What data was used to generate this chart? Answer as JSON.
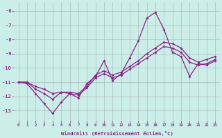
{
  "bg_color": "#cceee8",
  "grid_color": "#aabbbb",
  "line_color": "#882288",
  "x": [
    0,
    1,
    2,
    3,
    4,
    5,
    6,
    7,
    8,
    9,
    10,
    11,
    12,
    13,
    14,
    15,
    16,
    17,
    18,
    19,
    20,
    21,
    22,
    23
  ],
  "s1": [
    -11.0,
    -11.1,
    -11.8,
    -12.5,
    -13.2,
    -12.4,
    -11.8,
    -12.1,
    -11.1,
    -10.6,
    -9.5,
    -10.9,
    -10.4,
    -9.3,
    -8.1,
    -6.5,
    -6.1,
    -7.3,
    -8.9,
    -9.2,
    -10.6,
    -9.7,
    -9.8,
    -9.5
  ],
  "s2": [
    -11.0,
    -11.0,
    -11.5,
    -11.8,
    -12.2,
    -11.7,
    -11.8,
    -11.9,
    -11.4,
    -10.7,
    -10.4,
    -10.7,
    -10.5,
    -10.1,
    -9.7,
    -9.3,
    -8.9,
    -8.5,
    -8.6,
    -8.9,
    -9.6,
    -9.8,
    -9.7,
    -9.4
  ],
  "s3": [
    -11.0,
    -11.0,
    -11.3,
    -11.5,
    -11.8,
    -11.7,
    -11.7,
    -11.8,
    -11.3,
    -10.5,
    -10.2,
    -10.5,
    -10.3,
    -9.9,
    -9.5,
    -9.0,
    -8.6,
    -8.2,
    -8.3,
    -8.6,
    -9.3,
    -9.6,
    -9.4,
    -9.2
  ],
  "xlabel": "Windchill (Refroidissement éolien,°C)",
  "xlim": [
    -0.5,
    23.5
  ],
  "ylim": [
    -13.7,
    -5.4
  ],
  "yticks": [
    -6,
    -7,
    -8,
    -9,
    -10,
    -11,
    -12,
    -13
  ],
  "xticks": [
    0,
    1,
    2,
    3,
    4,
    5,
    6,
    7,
    8,
    9,
    10,
    11,
    12,
    13,
    14,
    15,
    16,
    17,
    18,
    19,
    20,
    21,
    22,
    23
  ]
}
